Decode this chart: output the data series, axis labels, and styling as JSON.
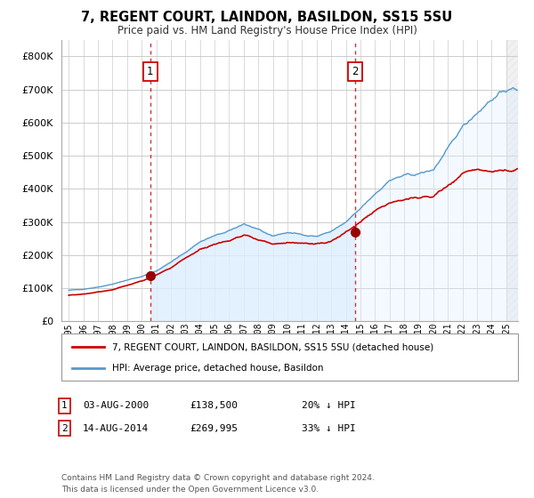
{
  "title": "7, REGENT COURT, LAINDON, BASILDON, SS15 5SU",
  "subtitle": "Price paid vs. HM Land Registry's House Price Index (HPI)",
  "sale1_date": "03-AUG-2000",
  "sale1_price": 138500,
  "sale1_year": 2000.58,
  "sale2_date": "14-AUG-2014",
  "sale2_price": 269995,
  "sale2_year": 2014.62,
  "legend_property": "7, REGENT COURT, LAINDON, BASILDON, SS15 5SU (detached house)",
  "legend_hpi": "HPI: Average price, detached house, Basildon",
  "footnote": "Contains HM Land Registry data © Crown copyright and database right 2024.\nThis data is licensed under the Open Government Licence v3.0.",
  "sale1_pct": "20% ↓ HPI",
  "sale2_pct": "33% ↓ HPI",
  "yticks": [
    0,
    100000,
    200000,
    300000,
    400000,
    500000,
    600000,
    700000,
    800000
  ],
  "ylim": [
    0,
    850000
  ],
  "xlim": [
    1994.5,
    2025.8
  ],
  "property_color": "#cc0000",
  "hpi_color": "#5599cc",
  "hpi_fill_color": "#ddeeff",
  "background_color": "#ffffff",
  "grid_color": "#cccccc",
  "hpi_years": [
    1995,
    1996,
    1997,
    1998,
    1999,
    2000,
    2001,
    2002,
    2003,
    2004,
    2005,
    2006,
    2007,
    2008,
    2009,
    2010,
    2011,
    2012,
    2013,
    2014,
    2015,
    2016,
    2017,
    2018,
    2019,
    2020,
    2021,
    2022,
    2023,
    2024,
    2025
  ],
  "hpi_values": [
    93000,
    97000,
    103000,
    112000,
    124000,
    135000,
    152000,
    178000,
    208000,
    240000,
    258000,
    272000,
    295000,
    275000,
    258000,
    268000,
    262000,
    256000,
    272000,
    298000,
    340000,
    385000,
    425000,
    440000,
    445000,
    458000,
    520000,
    590000,
    630000,
    670000,
    700000
  ],
  "prop_values": [
    78000,
    82000,
    88000,
    95000,
    108000,
    122000,
    138500,
    160000,
    190000,
    218000,
    232000,
    245000,
    262000,
    246000,
    232000,
    238000,
    236000,
    230000,
    242000,
    269995,
    300000,
    332000,
    358000,
    368000,
    372000,
    378000,
    410000,
    445000,
    462000,
    450000,
    455000
  ]
}
